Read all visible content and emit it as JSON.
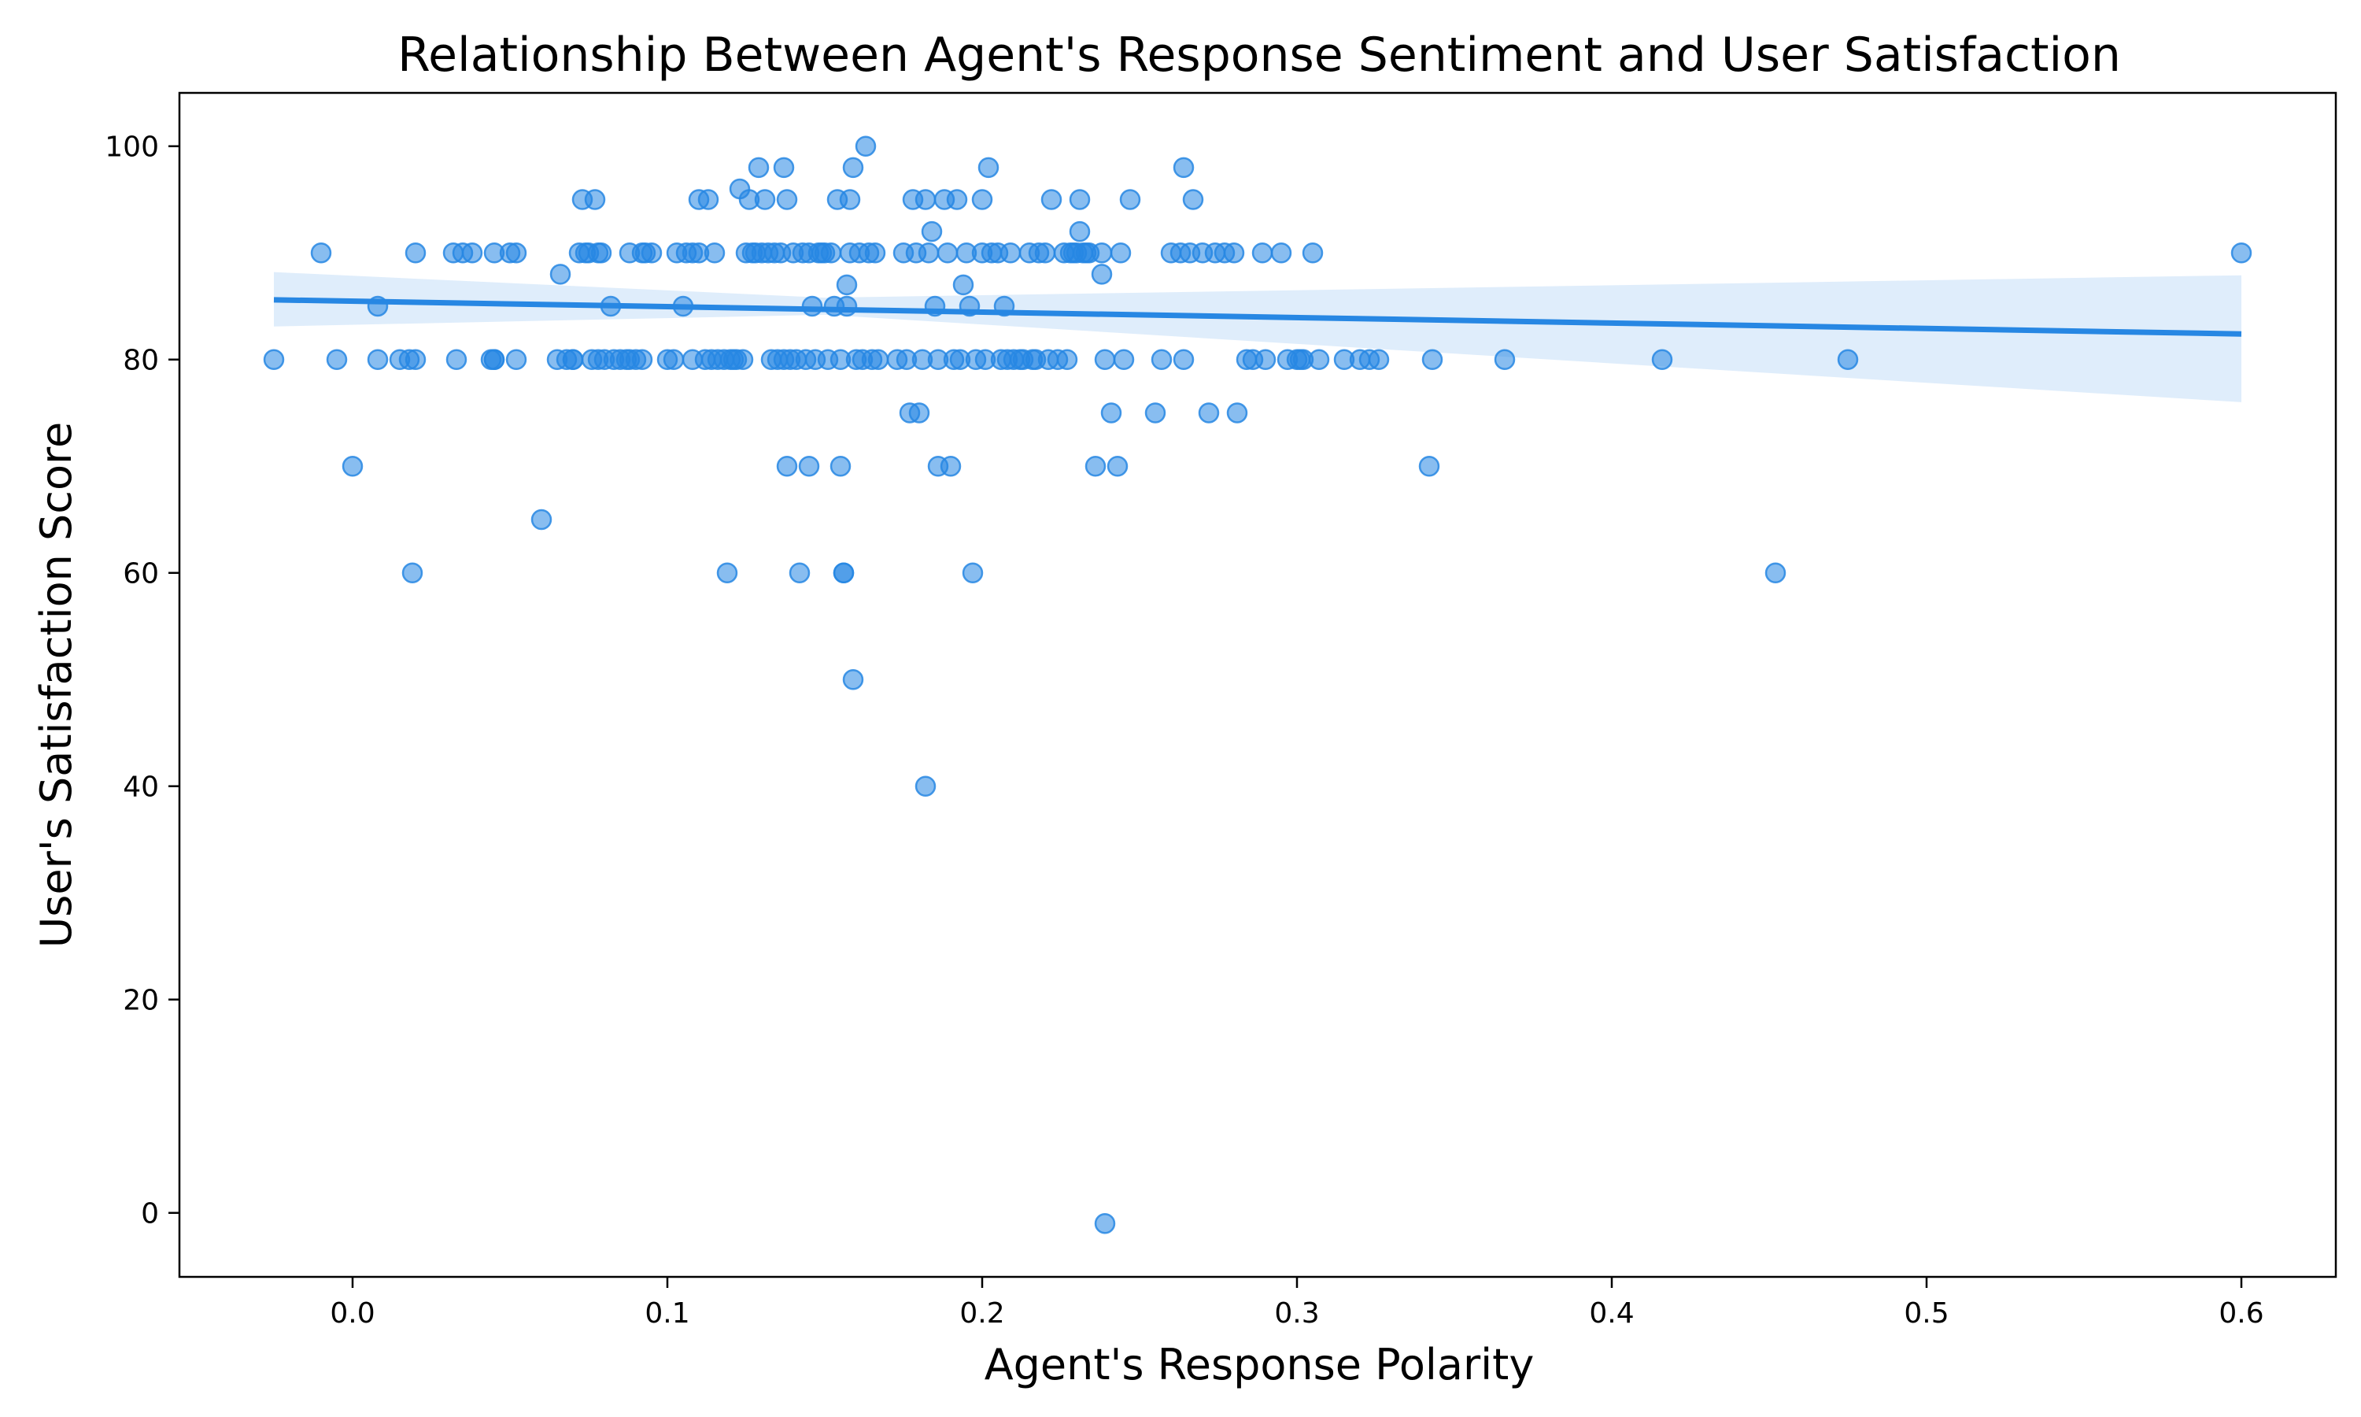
{
  "chart_data": {
    "type": "scatter",
    "title": "Relationship Between Agent's Response Sentiment and User Satisfaction",
    "xlabel": "Agent's Response Polarity",
    "ylabel": "User's Satisfaction Score",
    "xlim": [
      -0.055,
      0.63
    ],
    "ylim": [
      -6,
      105
    ],
    "xticks": [
      0.0,
      0.1,
      0.2,
      0.3,
      0.4,
      0.5,
      0.6
    ],
    "xtick_labels": [
      "0.0",
      "0.1",
      "0.2",
      "0.3",
      "0.4",
      "0.5",
      "0.6"
    ],
    "yticks": [
      0,
      20,
      40,
      60,
      80,
      100
    ],
    "ytick_labels": [
      "0",
      "20",
      "40",
      "60",
      "80",
      "100"
    ],
    "grid": false,
    "colors": {
      "points": "#2787e3",
      "line": "#2787e3",
      "band": "#2787e3"
    },
    "regression": {
      "x": [
        -0.025,
        0.6
      ],
      "y": [
        85.6,
        82.4
      ],
      "ci_upper": [
        88.2,
        87.9
      ],
      "ci_lower": [
        83.1,
        76.0
      ],
      "ci_mid_x": 0.15,
      "ci_mid_upper": 85.8,
      "ci_mid_lower": 84.2
    },
    "series": [
      {
        "points": [
          [
            -0.025,
            80
          ],
          [
            -0.01,
            90
          ],
          [
            -0.005,
            80
          ],
          [
            0.0,
            70
          ],
          [
            0.008,
            85
          ],
          [
            0.008,
            80
          ],
          [
            0.015,
            80
          ],
          [
            0.018,
            80
          ],
          [
            0.019,
            60
          ],
          [
            0.02,
            90
          ],
          [
            0.02,
            80
          ],
          [
            0.032,
            90
          ],
          [
            0.033,
            80
          ],
          [
            0.035,
            90
          ],
          [
            0.038,
            90
          ],
          [
            0.044,
            80
          ],
          [
            0.045,
            80
          ],
          [
            0.045,
            80
          ],
          [
            0.045,
            90
          ],
          [
            0.05,
            90
          ],
          [
            0.052,
            80
          ],
          [
            0.052,
            90
          ],
          [
            0.06,
            65
          ],
          [
            0.065,
            80
          ],
          [
            0.066,
            88
          ],
          [
            0.068,
            80
          ],
          [
            0.07,
            80
          ],
          [
            0.07,
            80
          ],
          [
            0.072,
            90
          ],
          [
            0.073,
            95
          ],
          [
            0.074,
            90
          ],
          [
            0.075,
            90
          ],
          [
            0.076,
            80
          ],
          [
            0.077,
            95
          ],
          [
            0.078,
            90
          ],
          [
            0.078,
            80
          ],
          [
            0.079,
            90
          ],
          [
            0.08,
            80
          ],
          [
            0.082,
            85
          ],
          [
            0.083,
            80
          ],
          [
            0.085,
            80
          ],
          [
            0.087,
            80
          ],
          [
            0.088,
            80
          ],
          [
            0.088,
            90
          ],
          [
            0.09,
            80
          ],
          [
            0.092,
            80
          ],
          [
            0.092,
            90
          ],
          [
            0.093,
            90
          ],
          [
            0.095,
            90
          ],
          [
            0.1,
            80
          ],
          [
            0.102,
            80
          ],
          [
            0.103,
            90
          ],
          [
            0.105,
            85
          ],
          [
            0.106,
            90
          ],
          [
            0.108,
            80
          ],
          [
            0.108,
            90
          ],
          [
            0.11,
            95
          ],
          [
            0.11,
            90
          ],
          [
            0.112,
            80
          ],
          [
            0.113,
            95
          ],
          [
            0.114,
            80
          ],
          [
            0.115,
            90
          ],
          [
            0.116,
            80
          ],
          [
            0.118,
            80
          ],
          [
            0.119,
            60
          ],
          [
            0.12,
            80
          ],
          [
            0.121,
            80
          ],
          [
            0.122,
            80
          ],
          [
            0.123,
            96
          ],
          [
            0.124,
            80
          ],
          [
            0.125,
            90
          ],
          [
            0.126,
            95
          ],
          [
            0.127,
            90
          ],
          [
            0.128,
            90
          ],
          [
            0.129,
            98
          ],
          [
            0.13,
            90
          ],
          [
            0.131,
            95
          ],
          [
            0.132,
            90
          ],
          [
            0.133,
            80
          ],
          [
            0.134,
            90
          ],
          [
            0.135,
            80
          ],
          [
            0.136,
            90
          ],
          [
            0.137,
            98
          ],
          [
            0.137,
            80
          ],
          [
            0.138,
            70
          ],
          [
            0.138,
            95
          ],
          [
            0.139,
            80
          ],
          [
            0.14,
            90
          ],
          [
            0.141,
            80
          ],
          [
            0.142,
            60
          ],
          [
            0.143,
            90
          ],
          [
            0.144,
            80
          ],
          [
            0.145,
            70
          ],
          [
            0.145,
            90
          ],
          [
            0.146,
            85
          ],
          [
            0.147,
            80
          ],
          [
            0.148,
            90
          ],
          [
            0.149,
            90
          ],
          [
            0.15,
            90
          ],
          [
            0.151,
            80
          ],
          [
            0.152,
            90
          ],
          [
            0.153,
            85
          ],
          [
            0.154,
            95
          ],
          [
            0.155,
            70
          ],
          [
            0.155,
            80
          ],
          [
            0.156,
            60
          ],
          [
            0.156,
            60
          ],
          [
            0.157,
            87
          ],
          [
            0.157,
            85
          ],
          [
            0.158,
            95
          ],
          [
            0.158,
            90
          ],
          [
            0.159,
            98
          ],
          [
            0.159,
            50
          ],
          [
            0.16,
            80
          ],
          [
            0.161,
            90
          ],
          [
            0.162,
            80
          ],
          [
            0.163,
            100
          ],
          [
            0.164,
            90
          ],
          [
            0.165,
            80
          ],
          [
            0.166,
            90
          ],
          [
            0.167,
            80
          ],
          [
            0.173,
            80
          ],
          [
            0.175,
            90
          ],
          [
            0.176,
            80
          ],
          [
            0.177,
            75
          ],
          [
            0.178,
            95
          ],
          [
            0.179,
            90
          ],
          [
            0.18,
            75
          ],
          [
            0.181,
            80
          ],
          [
            0.182,
            95
          ],
          [
            0.182,
            40
          ],
          [
            0.183,
            90
          ],
          [
            0.184,
            92
          ],
          [
            0.185,
            85
          ],
          [
            0.186,
            70
          ],
          [
            0.186,
            80
          ],
          [
            0.188,
            95
          ],
          [
            0.189,
            90
          ],
          [
            0.19,
            70
          ],
          [
            0.191,
            80
          ],
          [
            0.192,
            95
          ],
          [
            0.193,
            80
          ],
          [
            0.194,
            87
          ],
          [
            0.195,
            90
          ],
          [
            0.196,
            85
          ],
          [
            0.197,
            60
          ],
          [
            0.198,
            80
          ],
          [
            0.2,
            90
          ],
          [
            0.2,
            95
          ],
          [
            0.201,
            80
          ],
          [
            0.202,
            98
          ],
          [
            0.203,
            90
          ],
          [
            0.205,
            90
          ],
          [
            0.206,
            80
          ],
          [
            0.207,
            85
          ],
          [
            0.208,
            80
          ],
          [
            0.209,
            90
          ],
          [
            0.21,
            80
          ],
          [
            0.212,
            80
          ],
          [
            0.213,
            80
          ],
          [
            0.215,
            90
          ],
          [
            0.216,
            80
          ],
          [
            0.217,
            80
          ],
          [
            0.218,
            90
          ],
          [
            0.22,
            90
          ],
          [
            0.221,
            80
          ],
          [
            0.222,
            95
          ],
          [
            0.224,
            80
          ],
          [
            0.226,
            90
          ],
          [
            0.227,
            80
          ],
          [
            0.228,
            90
          ],
          [
            0.229,
            90
          ],
          [
            0.23,
            90
          ],
          [
            0.231,
            92
          ],
          [
            0.231,
            95
          ],
          [
            0.232,
            90
          ],
          [
            0.233,
            90
          ],
          [
            0.234,
            90
          ],
          [
            0.236,
            70
          ],
          [
            0.238,
            88
          ],
          [
            0.238,
            90
          ],
          [
            0.239,
            80
          ],
          [
            0.239,
            -1
          ],
          [
            0.241,
            75
          ],
          [
            0.243,
            70
          ],
          [
            0.244,
            90
          ],
          [
            0.245,
            80
          ],
          [
            0.247,
            95
          ],
          [
            0.255,
            75
          ],
          [
            0.257,
            80
          ],
          [
            0.26,
            90
          ],
          [
            0.263,
            90
          ],
          [
            0.264,
            98
          ],
          [
            0.264,
            80
          ],
          [
            0.266,
            90
          ],
          [
            0.267,
            95
          ],
          [
            0.27,
            90
          ],
          [
            0.272,
            75
          ],
          [
            0.274,
            90
          ],
          [
            0.277,
            90
          ],
          [
            0.28,
            90
          ],
          [
            0.281,
            75
          ],
          [
            0.284,
            80
          ],
          [
            0.286,
            80
          ],
          [
            0.289,
            90
          ],
          [
            0.29,
            80
          ],
          [
            0.295,
            90
          ],
          [
            0.297,
            80
          ],
          [
            0.3,
            80
          ],
          [
            0.301,
            80
          ],
          [
            0.302,
            80
          ],
          [
            0.305,
            90
          ],
          [
            0.307,
            80
          ],
          [
            0.315,
            80
          ],
          [
            0.32,
            80
          ],
          [
            0.323,
            80
          ],
          [
            0.326,
            80
          ],
          [
            0.342,
            70
          ],
          [
            0.343,
            80
          ],
          [
            0.366,
            80
          ],
          [
            0.416,
            80
          ],
          [
            0.452,
            60
          ],
          [
            0.475,
            80
          ],
          [
            0.6,
            90
          ]
        ]
      }
    ]
  }
}
